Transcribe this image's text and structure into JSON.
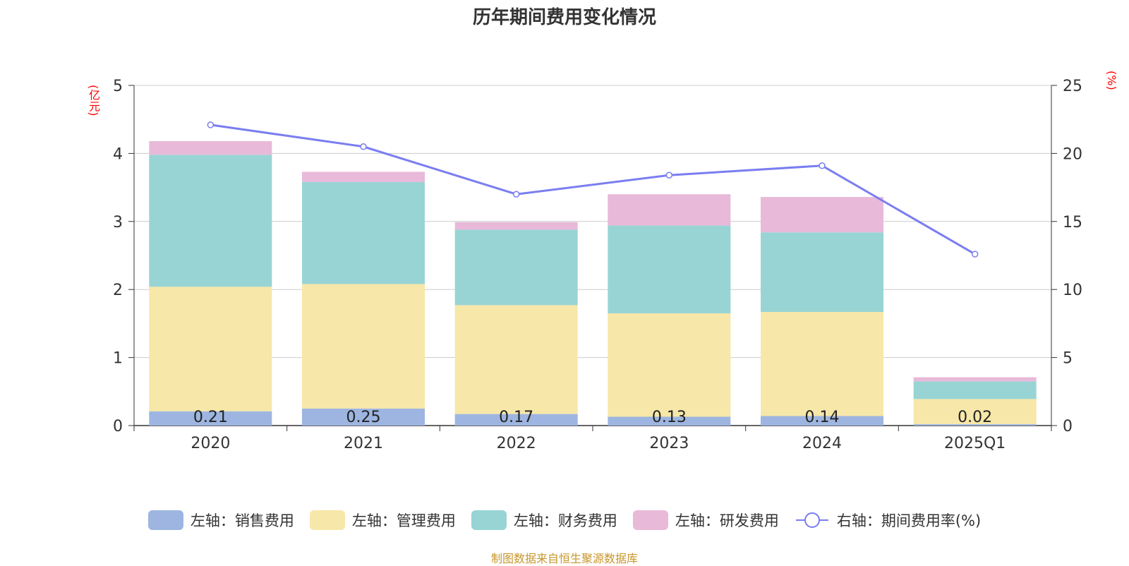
{
  "chart_data": {
    "type": "bar",
    "stacked": true,
    "title": "历年期间费用变化情况",
    "y_left_unit": "(亿元)",
    "y_right_unit": "(%)",
    "categories": [
      "2020",
      "2021",
      "2022",
      "2023",
      "2024",
      "2025Q1"
    ],
    "y_left_ticks": [
      "0",
      "1",
      "2",
      "3",
      "4",
      "5"
    ],
    "y_right_ticks": [
      "0",
      "5",
      "10",
      "15",
      "20",
      "25"
    ],
    "ylim_left": [
      0,
      5
    ],
    "ylim_right": [
      0,
      25
    ],
    "series": [
      {
        "name": "左轴：销售费用",
        "color": "#9db5e0",
        "values": [
          0.21,
          0.25,
          0.17,
          0.13,
          0.14,
          0.02
        ],
        "labels": [
          "0.21",
          "0.25",
          "0.17",
          "0.13",
          "0.14",
          "0.02"
        ]
      },
      {
        "name": "左轴：管理费用",
        "color": "#f7e7a8",
        "values": [
          1.83,
          1.83,
          1.6,
          1.52,
          1.53,
          0.37
        ]
      },
      {
        "name": "左轴：财务费用",
        "color": "#98d4d4",
        "values": [
          1.94,
          1.5,
          1.11,
          1.29,
          1.17,
          0.26
        ]
      },
      {
        "name": "左轴：研发费用",
        "color": "#e8b9d9",
        "values": [
          0.2,
          0.15,
          0.11,
          0.46,
          0.52,
          0.06
        ]
      }
    ],
    "line": {
      "name": "右轴：期间费用率(%)",
      "color": "#7a7ef0",
      "values": [
        22.1,
        20.5,
        17.0,
        18.4,
        19.1,
        12.6
      ]
    },
    "grid": true,
    "legend_position": "bottom"
  },
  "source": "制图数据来自恒生聚源数据库"
}
